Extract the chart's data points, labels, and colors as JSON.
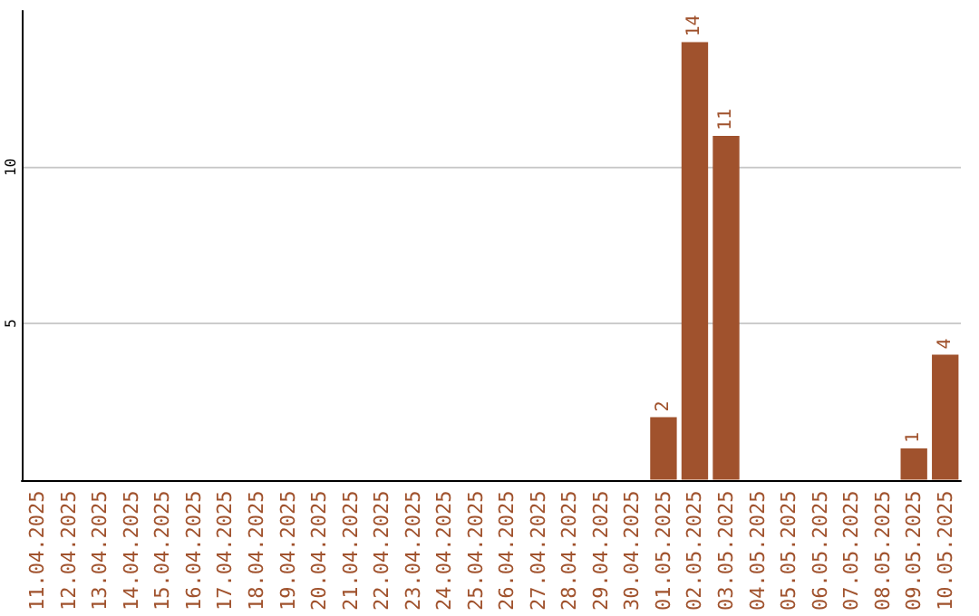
{
  "chart_data": {
    "type": "bar",
    "categories": [
      "11.04.2025",
      "12.04.2025",
      "13.04.2025",
      "14.04.2025",
      "15.04.2025",
      "16.04.2025",
      "17.04.2025",
      "18.04.2025",
      "19.04.2025",
      "20.04.2025",
      "21.04.2025",
      "22.04.2025",
      "23.04.2025",
      "24.04.2025",
      "25.04.2025",
      "26.04.2025",
      "27.04.2025",
      "28.04.2025",
      "29.04.2025",
      "30.04.2025",
      "01.05.2025",
      "02.05.2025",
      "03.05.2025",
      "04.05.2025",
      "05.05.2025",
      "06.05.2025",
      "07.05.2025",
      "08.05.2025",
      "09.05.2025",
      "10.05.2025"
    ],
    "values": [
      0,
      0,
      0,
      0,
      0,
      0,
      0,
      0,
      0,
      0,
      0,
      0,
      0,
      0,
      0,
      0,
      0,
      0,
      0,
      0,
      2,
      14,
      11,
      0,
      0,
      0,
      0,
      0,
      1,
      4
    ],
    "value_labels": [
      null,
      null,
      null,
      null,
      null,
      null,
      null,
      null,
      null,
      null,
      null,
      null,
      null,
      null,
      null,
      null,
      null,
      null,
      null,
      null,
      "2",
      "14",
      "11",
      null,
      null,
      null,
      null,
      null,
      "1",
      "4"
    ],
    "color": "#a0522d",
    "ylim": [
      0,
      15
    ],
    "yticks": [
      5,
      10
    ],
    "grid": "y"
  }
}
